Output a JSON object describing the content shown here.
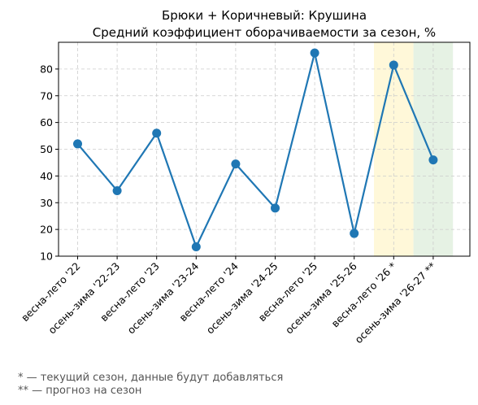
{
  "chart_data": {
    "type": "line",
    "title": "Брюки + Коричневый: Крушина",
    "subtitle": "Средний коэффициент оборачиваемости за сезон, %",
    "xlabel": "",
    "ylabel": "",
    "categories": [
      "весна-лето '22",
      "осень-зима '22-23",
      "весна-лето '23",
      "осень-зима '23-24",
      "весна-лето '24",
      "осень-зима '24-25",
      "весна-лето '25",
      "осень-зима '25-26",
      "весна-лето '26 *",
      "осень-зима '26-27 **"
    ],
    "series": [
      {
        "values": [
          52,
          34.5,
          56,
          13.5,
          44.5,
          28,
          86,
          18.5,
          81.5,
          46
        ]
      }
    ],
    "ylim": [
      10,
      90
    ],
    "yticks": [
      10,
      20,
      30,
      40,
      50,
      60,
      70,
      80
    ],
    "grid": true,
    "highlights": [
      {
        "category_index": 8,
        "color": "#fff8d9"
      },
      {
        "category_index": 9,
        "color": "#e6f2e4"
      }
    ],
    "line_color": "#1f77b4"
  },
  "footnotes": [
    "* — текущий сезон, данные будут добавляться",
    "** — прогноз на сезон"
  ]
}
